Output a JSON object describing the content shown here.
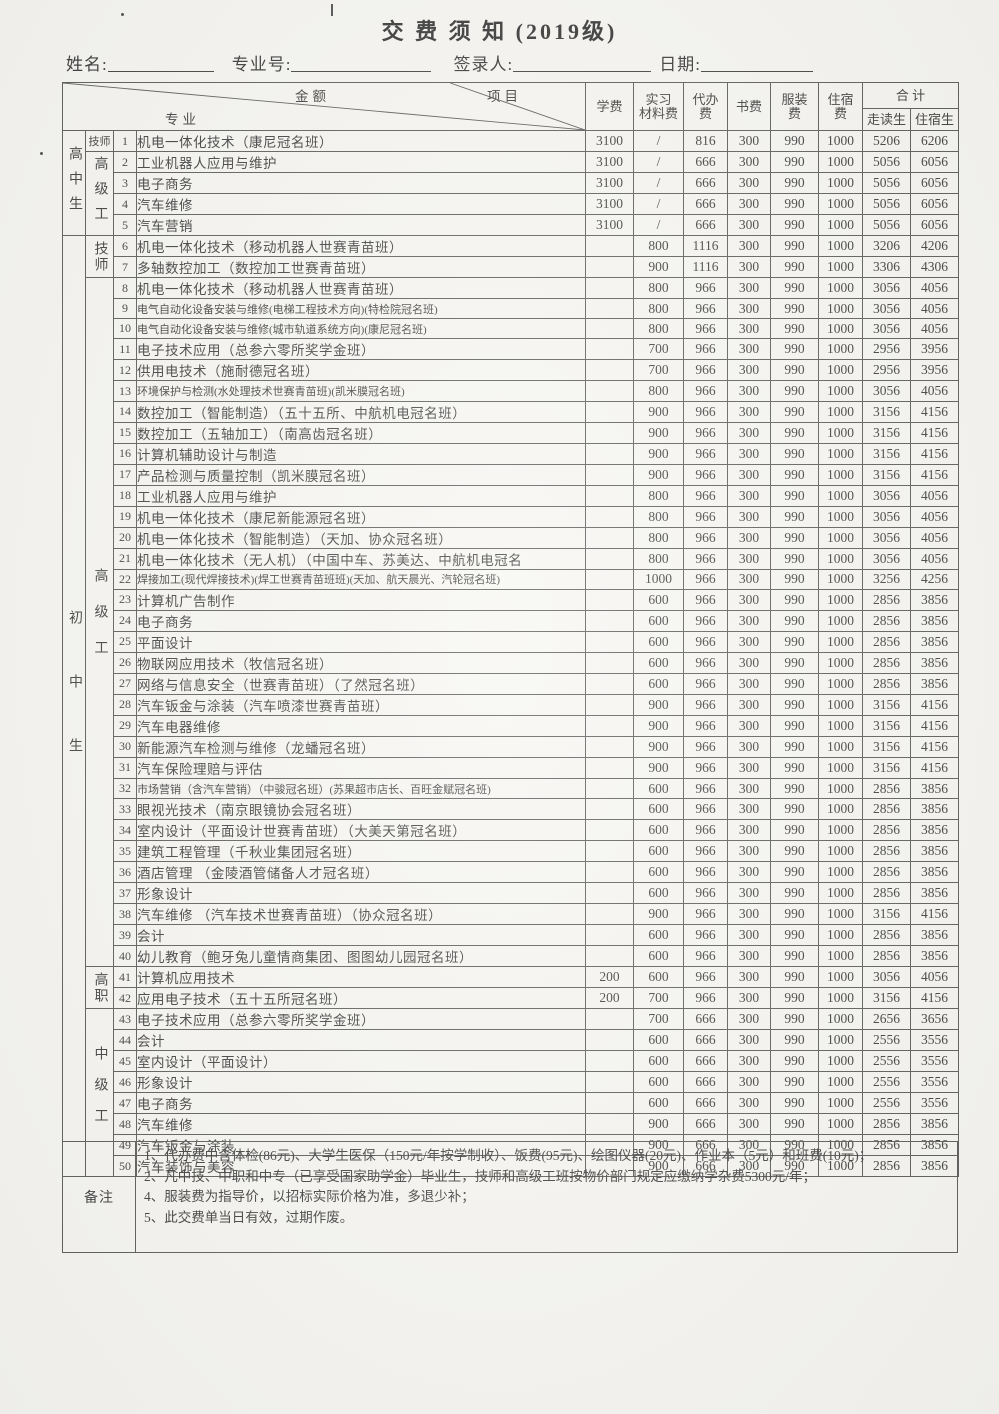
{
  "title": "交 费 须 知 (2019级)",
  "fields": {
    "name_label": "姓名:",
    "major_no_label": "专业号:",
    "signer_label": "签录人:",
    "date_label": "日期:"
  },
  "table": {
    "header": {
      "amount_label": "金额",
      "item_label": "项目",
      "major_label": "专业",
      "fee_columns": [
        "学费",
        "实习\n材料费",
        "代办\n费",
        "书费",
        "服装\n费",
        "住宿\n费"
      ],
      "total_label": "合  计",
      "total_sub": [
        "走读生",
        "住宿生"
      ]
    },
    "row_groups": [
      {
        "label": "高中生",
        "start": 1,
        "end": 5
      },
      {
        "label": "初中生",
        "start": 6,
        "end": 50
      }
    ],
    "sub_groups": [
      {
        "label": "技师",
        "start": 1,
        "end": 1
      },
      {
        "label": "高级工",
        "start": 2,
        "end": 5
      },
      {
        "label": "技师",
        "start": 6,
        "end": 7
      },
      {
        "label": "高级工",
        "start": 8,
        "end": 40
      },
      {
        "label": "高职",
        "start": 41,
        "end": 42
      },
      {
        "label": "中级工",
        "start": 43,
        "end": 50
      }
    ],
    "rows": [
      {
        "n": 1,
        "name": "机电一体化技术（康尼冠名班）",
        "fees": [
          "3100",
          "/",
          "816",
          "300",
          "990",
          "1000",
          "5206",
          "6206"
        ]
      },
      {
        "n": 2,
        "name": "工业机器人应用与维护",
        "fees": [
          "3100",
          "/",
          "666",
          "300",
          "990",
          "1000",
          "5056",
          "6056"
        ]
      },
      {
        "n": 3,
        "name": "电子商务",
        "fees": [
          "3100",
          "/",
          "666",
          "300",
          "990",
          "1000",
          "5056",
          "6056"
        ]
      },
      {
        "n": 4,
        "name": "汽车维修",
        "fees": [
          "3100",
          "/",
          "666",
          "300",
          "990",
          "1000",
          "5056",
          "6056"
        ]
      },
      {
        "n": 5,
        "name": "汽车营销",
        "fees": [
          "3100",
          "/",
          "666",
          "300",
          "990",
          "1000",
          "5056",
          "6056"
        ]
      },
      {
        "n": 6,
        "name": "机电一体化技术（移动机器人世赛青苗班）",
        "fees": [
          "",
          "800",
          "1116",
          "300",
          "990",
          "1000",
          "3206",
          "4206"
        ]
      },
      {
        "n": 7,
        "name": "多轴数控加工（数控加工世赛青苗班）",
        "fees": [
          "",
          "900",
          "1116",
          "300",
          "990",
          "1000",
          "3306",
          "4306"
        ]
      },
      {
        "n": 8,
        "name": "机电一体化技术（移动机器人世赛青苗班）",
        "fees": [
          "",
          "800",
          "966",
          "300",
          "990",
          "1000",
          "3056",
          "4056"
        ]
      },
      {
        "n": 9,
        "name": "电气自动化设备安装与维修(电梯工程技术方向)(特检院冠名班)",
        "small": true,
        "fees": [
          "",
          "800",
          "966",
          "300",
          "990",
          "1000",
          "3056",
          "4056"
        ]
      },
      {
        "n": 10,
        "name": "电气自动化设备安装与维修(城市轨道系统方向)(康尼冠名班)",
        "small": true,
        "fees": [
          "",
          "800",
          "966",
          "300",
          "990",
          "1000",
          "3056",
          "4056"
        ]
      },
      {
        "n": 11,
        "name": "电子技术应用（总参六零所奖学金班）",
        "fees": [
          "",
          "700",
          "966",
          "300",
          "990",
          "1000",
          "2956",
          "3956"
        ]
      },
      {
        "n": 12,
        "name": "供用电技术（施耐德冠名班）",
        "fees": [
          "",
          "700",
          "966",
          "300",
          "990",
          "1000",
          "2956",
          "3956"
        ]
      },
      {
        "n": 13,
        "name": "环境保护与检测(水处理技术世赛青苗班)(凯米膜冠名班)",
        "small": true,
        "fees": [
          "",
          "800",
          "966",
          "300",
          "990",
          "1000",
          "3056",
          "4056"
        ]
      },
      {
        "n": 14,
        "name": "数控加工（智能制造）（五十五所、中航机电冠名班）",
        "fees": [
          "",
          "900",
          "966",
          "300",
          "990",
          "1000",
          "3156",
          "4156"
        ]
      },
      {
        "n": 15,
        "name": "数控加工（五轴加工）（南高齿冠名班）",
        "fees": [
          "",
          "900",
          "966",
          "300",
          "990",
          "1000",
          "3156",
          "4156"
        ]
      },
      {
        "n": 16,
        "name": "计算机辅助设计与制造",
        "fees": [
          "",
          "900",
          "966",
          "300",
          "990",
          "1000",
          "3156",
          "4156"
        ]
      },
      {
        "n": 17,
        "name": "产品检测与质量控制（凯米膜冠名班）",
        "fees": [
          "",
          "900",
          "966",
          "300",
          "990",
          "1000",
          "3156",
          "4156"
        ]
      },
      {
        "n": 18,
        "name": "工业机器人应用与维护",
        "fees": [
          "",
          "800",
          "966",
          "300",
          "990",
          "1000",
          "3056",
          "4056"
        ]
      },
      {
        "n": 19,
        "name": "机电一体化技术（康尼新能源冠名班）",
        "fees": [
          "",
          "800",
          "966",
          "300",
          "990",
          "1000",
          "3056",
          "4056"
        ]
      },
      {
        "n": 20,
        "name": "机电一体化技术（智能制造）（天加、协众冠名班）",
        "fees": [
          "",
          "800",
          "966",
          "300",
          "990",
          "1000",
          "3056",
          "4056"
        ]
      },
      {
        "n": 21,
        "name": "机电一体化技术（无人机）（中国中车、苏美达、中航机电冠名",
        "fees": [
          "",
          "800",
          "966",
          "300",
          "990",
          "1000",
          "3056",
          "4056"
        ]
      },
      {
        "n": 22,
        "name": "焊接加工(现代焊接技术)(焊工世赛青苗班班)(天加、航天晨光、汽轮冠名班)",
        "small": true,
        "fees": [
          "",
          "1000",
          "966",
          "300",
          "990",
          "1000",
          "3256",
          "4256"
        ]
      },
      {
        "n": 23,
        "name": "计算机广告制作",
        "fees": [
          "",
          "600",
          "966",
          "300",
          "990",
          "1000",
          "2856",
          "3856"
        ]
      },
      {
        "n": 24,
        "name": "电子商务",
        "fees": [
          "",
          "600",
          "966",
          "300",
          "990",
          "1000",
          "2856",
          "3856"
        ]
      },
      {
        "n": 25,
        "name": "平面设计",
        "fees": [
          "",
          "600",
          "966",
          "300",
          "990",
          "1000",
          "2856",
          "3856"
        ]
      },
      {
        "n": 26,
        "name": "物联网应用技术（牧信冠名班）",
        "fees": [
          "",
          "600",
          "966",
          "300",
          "990",
          "1000",
          "2856",
          "3856"
        ]
      },
      {
        "n": 27,
        "name": "网络与信息安全（世赛青苗班）（了然冠名班）",
        "fees": [
          "",
          "600",
          "966",
          "300",
          "990",
          "1000",
          "2856",
          "3856"
        ]
      },
      {
        "n": 28,
        "name": "汽车钣金与涂装（汽车喷漆世赛青苗班）",
        "fees": [
          "",
          "900",
          "966",
          "300",
          "990",
          "1000",
          "3156",
          "4156"
        ]
      },
      {
        "n": 29,
        "name": "汽车电器维修",
        "fees": [
          "",
          "900",
          "966",
          "300",
          "990",
          "1000",
          "3156",
          "4156"
        ]
      },
      {
        "n": 30,
        "name": "新能源汽车检测与维修（龙蟠冠名班）",
        "fees": [
          "",
          "900",
          "966",
          "300",
          "990",
          "1000",
          "3156",
          "4156"
        ]
      },
      {
        "n": 31,
        "name": "汽车保险理赔与评估",
        "fees": [
          "",
          "900",
          "966",
          "300",
          "990",
          "1000",
          "3156",
          "4156"
        ]
      },
      {
        "n": 32,
        "name": "市场营销（含汽车营销）（中骏冠名班）(苏果超市店长、百旺金赋冠名班)",
        "small": true,
        "fees": [
          "",
          "600",
          "966",
          "300",
          "990",
          "1000",
          "2856",
          "3856"
        ]
      },
      {
        "n": 33,
        "name": "眼视光技术（南京眼镜协会冠名班）",
        "fees": [
          "",
          "600",
          "966",
          "300",
          "990",
          "1000",
          "2856",
          "3856"
        ]
      },
      {
        "n": 34,
        "name": "室内设计（平面设计世赛青苗班）（大美天第冠名班）",
        "fees": [
          "",
          "600",
          "966",
          "300",
          "990",
          "1000",
          "2856",
          "3856"
        ]
      },
      {
        "n": 35,
        "name": "建筑工程管理（千秋业集团冠名班）",
        "fees": [
          "",
          "600",
          "966",
          "300",
          "990",
          "1000",
          "2856",
          "3856"
        ]
      },
      {
        "n": 36,
        "name": "酒店管理 （金陵酒管储备人才冠名班）",
        "fees": [
          "",
          "600",
          "966",
          "300",
          "990",
          "1000",
          "2856",
          "3856"
        ]
      },
      {
        "n": 37,
        "name": "形象设计",
        "fees": [
          "",
          "600",
          "966",
          "300",
          "990",
          "1000",
          "2856",
          "3856"
        ]
      },
      {
        "n": 38,
        "name": "汽车维修 （汽车技术世赛青苗班）（协众冠名班）",
        "fees": [
          "",
          "900",
          "966",
          "300",
          "990",
          "1000",
          "3156",
          "4156"
        ]
      },
      {
        "n": 39,
        "name": "会计",
        "fees": [
          "",
          "600",
          "966",
          "300",
          "990",
          "1000",
          "2856",
          "3856"
        ]
      },
      {
        "n": 40,
        "name": "幼儿教育（鲍牙兔儿童情商集团、图图幼儿园冠名班）",
        "fees": [
          "",
          "600",
          "966",
          "300",
          "990",
          "1000",
          "2856",
          "3856"
        ]
      },
      {
        "n": 41,
        "name": "计算机应用技术",
        "fees": [
          "200",
          "600",
          "966",
          "300",
          "990",
          "1000",
          "3056",
          "4056"
        ]
      },
      {
        "n": 42,
        "name": "应用电子技术（五十五所冠名班）",
        "fees": [
          "200",
          "700",
          "966",
          "300",
          "990",
          "1000",
          "3156",
          "4156"
        ]
      },
      {
        "n": 43,
        "name": "电子技术应用（总参六零所奖学金班）",
        "fees": [
          "",
          "700",
          "666",
          "300",
          "990",
          "1000",
          "2656",
          "3656"
        ]
      },
      {
        "n": 44,
        "name": "会计",
        "fees": [
          "",
          "600",
          "666",
          "300",
          "990",
          "1000",
          "2556",
          "3556"
        ]
      },
      {
        "n": 45,
        "name": "室内设计（平面设计）",
        "fees": [
          "",
          "600",
          "666",
          "300",
          "990",
          "1000",
          "2556",
          "3556"
        ]
      },
      {
        "n": 46,
        "name": "形象设计",
        "fees": [
          "",
          "600",
          "666",
          "300",
          "990",
          "1000",
          "2556",
          "3556"
        ]
      },
      {
        "n": 47,
        "name": "电子商务",
        "fees": [
          "",
          "600",
          "666",
          "300",
          "990",
          "1000",
          "2556",
          "3556"
        ]
      },
      {
        "n": 48,
        "name": "汽车维修",
        "fees": [
          "",
          "900",
          "666",
          "300",
          "990",
          "1000",
          "2856",
          "3856"
        ]
      },
      {
        "n": 49,
        "name": "汽车钣金与涂装",
        "fees": [
          "",
          "900",
          "666",
          "300",
          "990",
          "1000",
          "2856",
          "3856"
        ]
      },
      {
        "n": 50,
        "name": "汽车装饰与美容",
        "fees": [
          "",
          "900",
          "666",
          "300",
          "990",
          "1000",
          "2856",
          "3856"
        ]
      }
    ]
  },
  "remarks": {
    "label": "备注",
    "lines": [
      "1、代办费中含体检(86元)、大学生医保（150元/年按学制收）、饭费(95元)、绘图仪器(20元)、作业本（5元）和班费(10元)；",
      "2、凡中技、中职和中专（已享受国家助学金）毕业生，技师和高级工班按物价部门规定应缴纳学杂费5300元/年；",
      "4、服装费为指导价，以招标实际价格为准，多退少补；",
      "5、此交费单当日有效，过期作废。"
    ]
  }
}
